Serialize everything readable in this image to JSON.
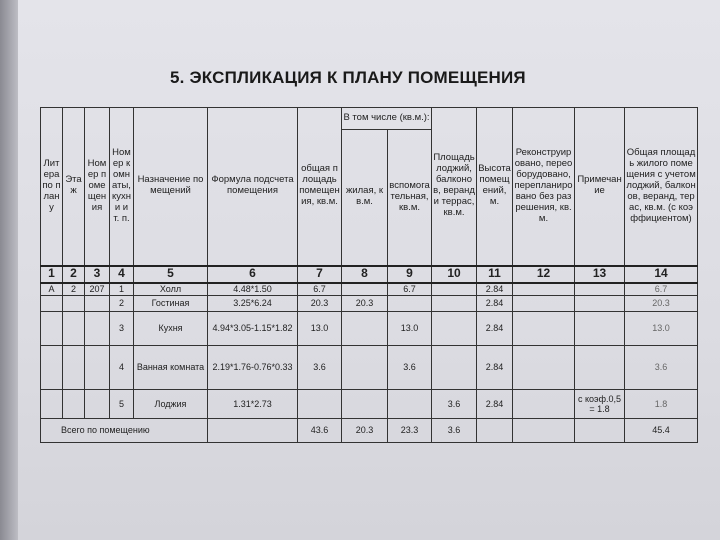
{
  "title": "5. ЭКСПЛИКАЦИЯ К ПЛАНУ ПОМЕЩЕНИЯ",
  "header": {
    "c1": "Литера по плану",
    "c2": "Этаж",
    "c3": "Номер помещения",
    "c4": "Номер комнаты, кухни и т. п.",
    "c5": "Назначение помещений",
    "c6": "Формула подсчета помещения",
    "c7": "общая площадь помещения, кв.м.",
    "group": "В том числе (кв.м.):",
    "c8": "жилая, кв.м.",
    "c9": "вспомогательная, кв.м.",
    "c10": "Площадь лоджий, балконов, веранд и террас, кв.м.",
    "c11": "Высота помещений, м.",
    "c12": "Реконструировано, переоборудовано, перепланировано без разрешения, кв.м.",
    "c13": "Примечание",
    "c14": "Общая площадь жилого помещения с учетом лоджий, балконов, веранд, терас, кв.м. (с коэффициентом)"
  },
  "column_numbers": [
    "1",
    "2",
    "3",
    "4",
    "5",
    "6",
    "7",
    "8",
    "9",
    "10",
    "11",
    "12",
    "13",
    "14"
  ],
  "rows": [
    [
      "А",
      "2",
      "207",
      "1",
      "Холл",
      "4.48*1.50",
      "6.7",
      "",
      "6.7",
      "",
      "2.84",
      "",
      "",
      "6.7"
    ],
    [
      "",
      "",
      "",
      "2",
      "Гостиная",
      "3.25*6.24",
      "20.3",
      "20.3",
      "",
      "",
      "2.84",
      "",
      "",
      "20.3"
    ],
    [
      "",
      "",
      "",
      "3",
      "Кухня",
      "4.94*3.05-1.15*1.82",
      "13.0",
      "",
      "13.0",
      "",
      "2.84",
      "",
      "",
      "13.0"
    ],
    [
      "",
      "",
      "",
      "4",
      "Ванная комната",
      "2.19*1.76-0.76*0.33",
      "3.6",
      "",
      "3.6",
      "",
      "2.84",
      "",
      "",
      "3.6"
    ],
    [
      "",
      "",
      "",
      "5",
      "Лоджия",
      "1.31*2.73",
      "",
      "",
      "",
      "3.6",
      "2.84",
      "",
      "с коэф.0,5= 1.8",
      "1.8"
    ]
  ],
  "total": {
    "label": "Всего по помещению",
    "values": [
      "",
      "43.6",
      "20.3",
      "23.3",
      "3.6",
      "",
      "",
      "",
      "45.4"
    ]
  }
}
